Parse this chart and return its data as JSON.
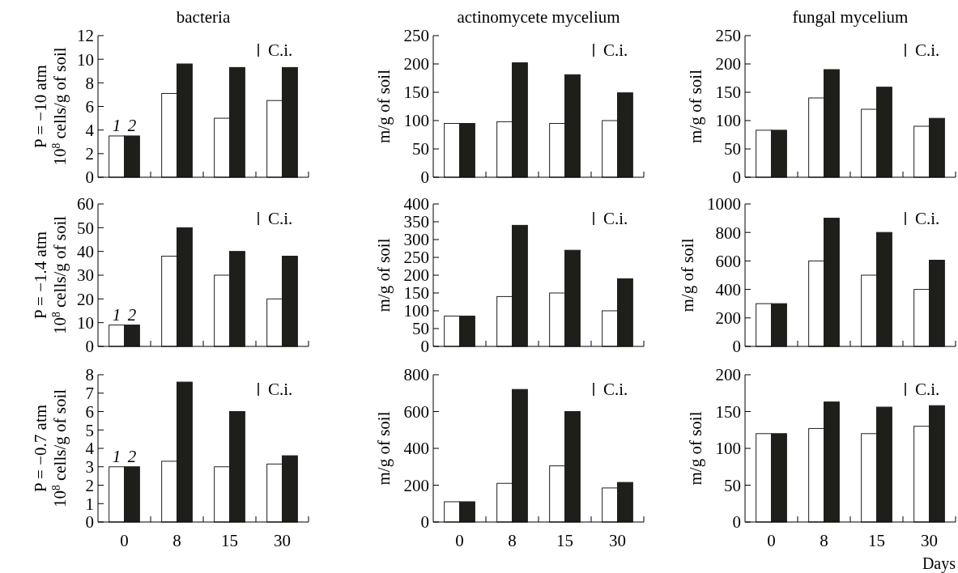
{
  "chart_data": [
    {
      "type": "bar",
      "title": "bacteria",
      "ylabel": "P = −10 atm\n10$^{8}$ cells/g of soil",
      "categories": [
        "0",
        "8",
        "15",
        "30"
      ],
      "series": [
        {
          "name": "1",
          "color": "#ffffff",
          "values": [
            3.5,
            7.1,
            5,
            6.5
          ]
        },
        {
          "name": "2",
          "color": "#1e1e1a",
          "values": [
            3.5,
            9.6,
            9.3,
            9.3
          ]
        }
      ],
      "ylim": [
        0,
        12
      ],
      "yticks": [
        0,
        2,
        4,
        6,
        8,
        10,
        12
      ],
      "tick_labels": "y",
      "annotations": [
        "C.i."
      ]
    },
    {
      "type": "bar",
      "title": "actinomycete mycelium",
      "ylabel": "m/g of soil",
      "categories": [
        "0",
        "8",
        "15",
        "30"
      ],
      "series": [
        {
          "color": "#ffffff",
          "values": [
            95,
            98,
            95,
            100
          ]
        },
        {
          "color": "#1e1e1a",
          "values": [
            95,
            202,
            181,
            149
          ]
        }
      ],
      "ylim": [
        0,
        250
      ],
      "yticks": [
        0,
        50,
        100,
        150,
        200,
        250
      ],
      "tick_labels": "y",
      "annotations": [
        "C.i."
      ]
    },
    {
      "type": "bar",
      "title": "fungal mycelium",
      "ylabel": "m/g of soil",
      "categories": [
        "0",
        "8",
        "15",
        "30"
      ],
      "series": [
        {
          "color": "#ffffff",
          "values": [
            83,
            140,
            120,
            90
          ]
        },
        {
          "color": "#1e1e1a",
          "values": [
            83,
            190,
            159,
            104
          ]
        }
      ],
      "ylim": [
        0,
        250
      ],
      "yticks": [
        0,
        50,
        100,
        150,
        200,
        250
      ],
      "tick_labels": "y",
      "annotations": [
        "C.i."
      ]
    },
    {
      "type": "bar",
      "ylabel": "P = −1.4 atm\n10$^{8}$ cells/g of soil",
      "categories": [
        "0",
        "8",
        "15",
        "30"
      ],
      "series": [
        {
          "name": "1",
          "color": "#ffffff",
          "values": [
            9,
            38,
            30,
            20
          ]
        },
        {
          "name": "2",
          "color": "#1e1e1a",
          "values": [
            9,
            50,
            40,
            38
          ]
        }
      ],
      "ylim": [
        0,
        60
      ],
      "yticks": [
        0,
        10,
        20,
        30,
        40,
        50,
        60
      ],
      "tick_labels": "y",
      "annotations": [
        "C.i."
      ]
    },
    {
      "type": "bar",
      "ylabel": "m/g of soil",
      "categories": [
        "0",
        "8",
        "15",
        "30"
      ],
      "series": [
        {
          "color": "#ffffff",
          "values": [
            85,
            140,
            150,
            100
          ]
        },
        {
          "color": "#1e1e1a",
          "values": [
            85,
            340,
            270,
            190
          ]
        }
      ],
      "ylim": [
        0,
        400
      ],
      "yticks": [
        0,
        50,
        100,
        150,
        200,
        250,
        300,
        350,
        400
      ],
      "tick_labels": "y",
      "annotations": [
        "C.i."
      ]
    },
    {
      "type": "bar",
      "ylabel": "m/g of soil",
      "categories": [
        "0",
        "8",
        "15",
        "30"
      ],
      "series": [
        {
          "color": "#ffffff",
          "values": [
            300,
            600,
            500,
            400
          ]
        },
        {
          "color": "#1e1e1a",
          "values": [
            300,
            900,
            800,
            605
          ]
        }
      ],
      "ylim": [
        0,
        1000
      ],
      "yticks": [
        0,
        200,
        400,
        600,
        800,
        1000
      ],
      "tick_labels": "y",
      "annotations": [
        "C.i."
      ]
    },
    {
      "type": "bar",
      "ylabel": "P = −0.7 atm\n10$^{8}$ cells/g of soil",
      "categories": [
        "0",
        "8",
        "15",
        "30"
      ],
      "series": [
        {
          "name": "1",
          "color": "#ffffff",
          "values": [
            3,
            3.3,
            3,
            3.15
          ]
        },
        {
          "name": "2",
          "color": "#1e1e1a",
          "values": [
            3,
            7.6,
            6,
            3.6
          ]
        }
      ],
      "ylim": [
        0,
        8
      ],
      "yticks": [
        0,
        1,
        2,
        3,
        4,
        5,
        6,
        7,
        8
      ],
      "annotations": [
        "C.i."
      ]
    },
    {
      "type": "bar",
      "ylabel": "m/g of soil",
      "categories": [
        "0",
        "8",
        "15",
        "30"
      ],
      "series": [
        {
          "color": "#ffffff",
          "values": [
            110,
            210,
            305,
            185
          ]
        },
        {
          "color": "#1e1e1a",
          "values": [
            110,
            720,
            600,
            215
          ]
        }
      ],
      "ylim": [
        0,
        800
      ],
      "yticks": [
        0,
        200,
        400,
        600,
        800
      ],
      "annotations": [
        "C.i."
      ]
    },
    {
      "type": "bar",
      "xlabel": "Days",
      "ylabel": "m/g of soil",
      "categories": [
        "0",
        "8",
        "15",
        "30"
      ],
      "series": [
        {
          "color": "#ffffff",
          "values": [
            120,
            127,
            120,
            130
          ]
        },
        {
          "color": "#1e1e1a",
          "values": [
            120,
            163,
            156,
            158
          ]
        }
      ],
      "ylim": [
        0,
        200
      ],
      "yticks": [
        0,
        50,
        100,
        150,
        200
      ],
      "annotations": [
        "C.i."
      ]
    }
  ]
}
